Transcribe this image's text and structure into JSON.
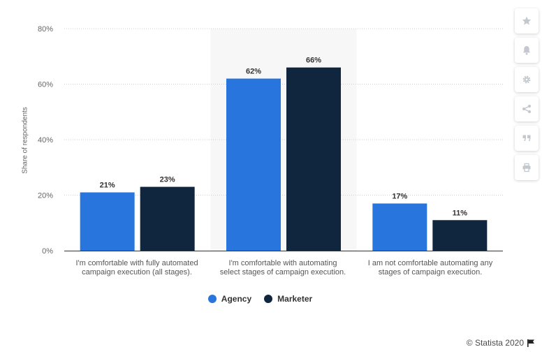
{
  "chart_data": {
    "type": "bar",
    "categories": [
      "I'm comfortable with fully automated campaign execution (all stages).",
      "I'm comfortable with automating select stages of campaign execution.",
      "I am not comfortable automating any stages of campaign execution."
    ],
    "category_lines": [
      [
        "I'm comfortable with fully automated",
        "campaign execution (all stages)."
      ],
      [
        "I'm comfortable with automating",
        "select stages of campaign execution."
      ],
      [
        "I am not comfortable automating any",
        "stages of campaign execution."
      ]
    ],
    "series": [
      {
        "name": "Agency",
        "values": [
          21,
          62,
          17
        ],
        "labels": [
          "21%",
          "62%",
          "17%"
        ],
        "color": "#2876dd"
      },
      {
        "name": "Marketer",
        "values": [
          23,
          66,
          11
        ],
        "labels": [
          "23%",
          "66%",
          "11%"
        ],
        "color": "#10263e"
      }
    ],
    "ylabel": "Share of respondents",
    "ylim": [
      0,
      80
    ],
    "yticks": [
      0,
      20,
      40,
      60,
      80
    ],
    "ytick_labels": [
      "0%",
      "20%",
      "40%",
      "60%",
      "80%"
    ],
    "highlighted_category": 1,
    "grid": true,
    "legend_position": "bottom"
  },
  "credit": "© Statista 2020",
  "toolbar": [
    {
      "name": "star-icon"
    },
    {
      "name": "bell-icon"
    },
    {
      "name": "gear-icon"
    },
    {
      "name": "share-icon"
    },
    {
      "name": "quote-icon"
    },
    {
      "name": "print-icon"
    }
  ]
}
